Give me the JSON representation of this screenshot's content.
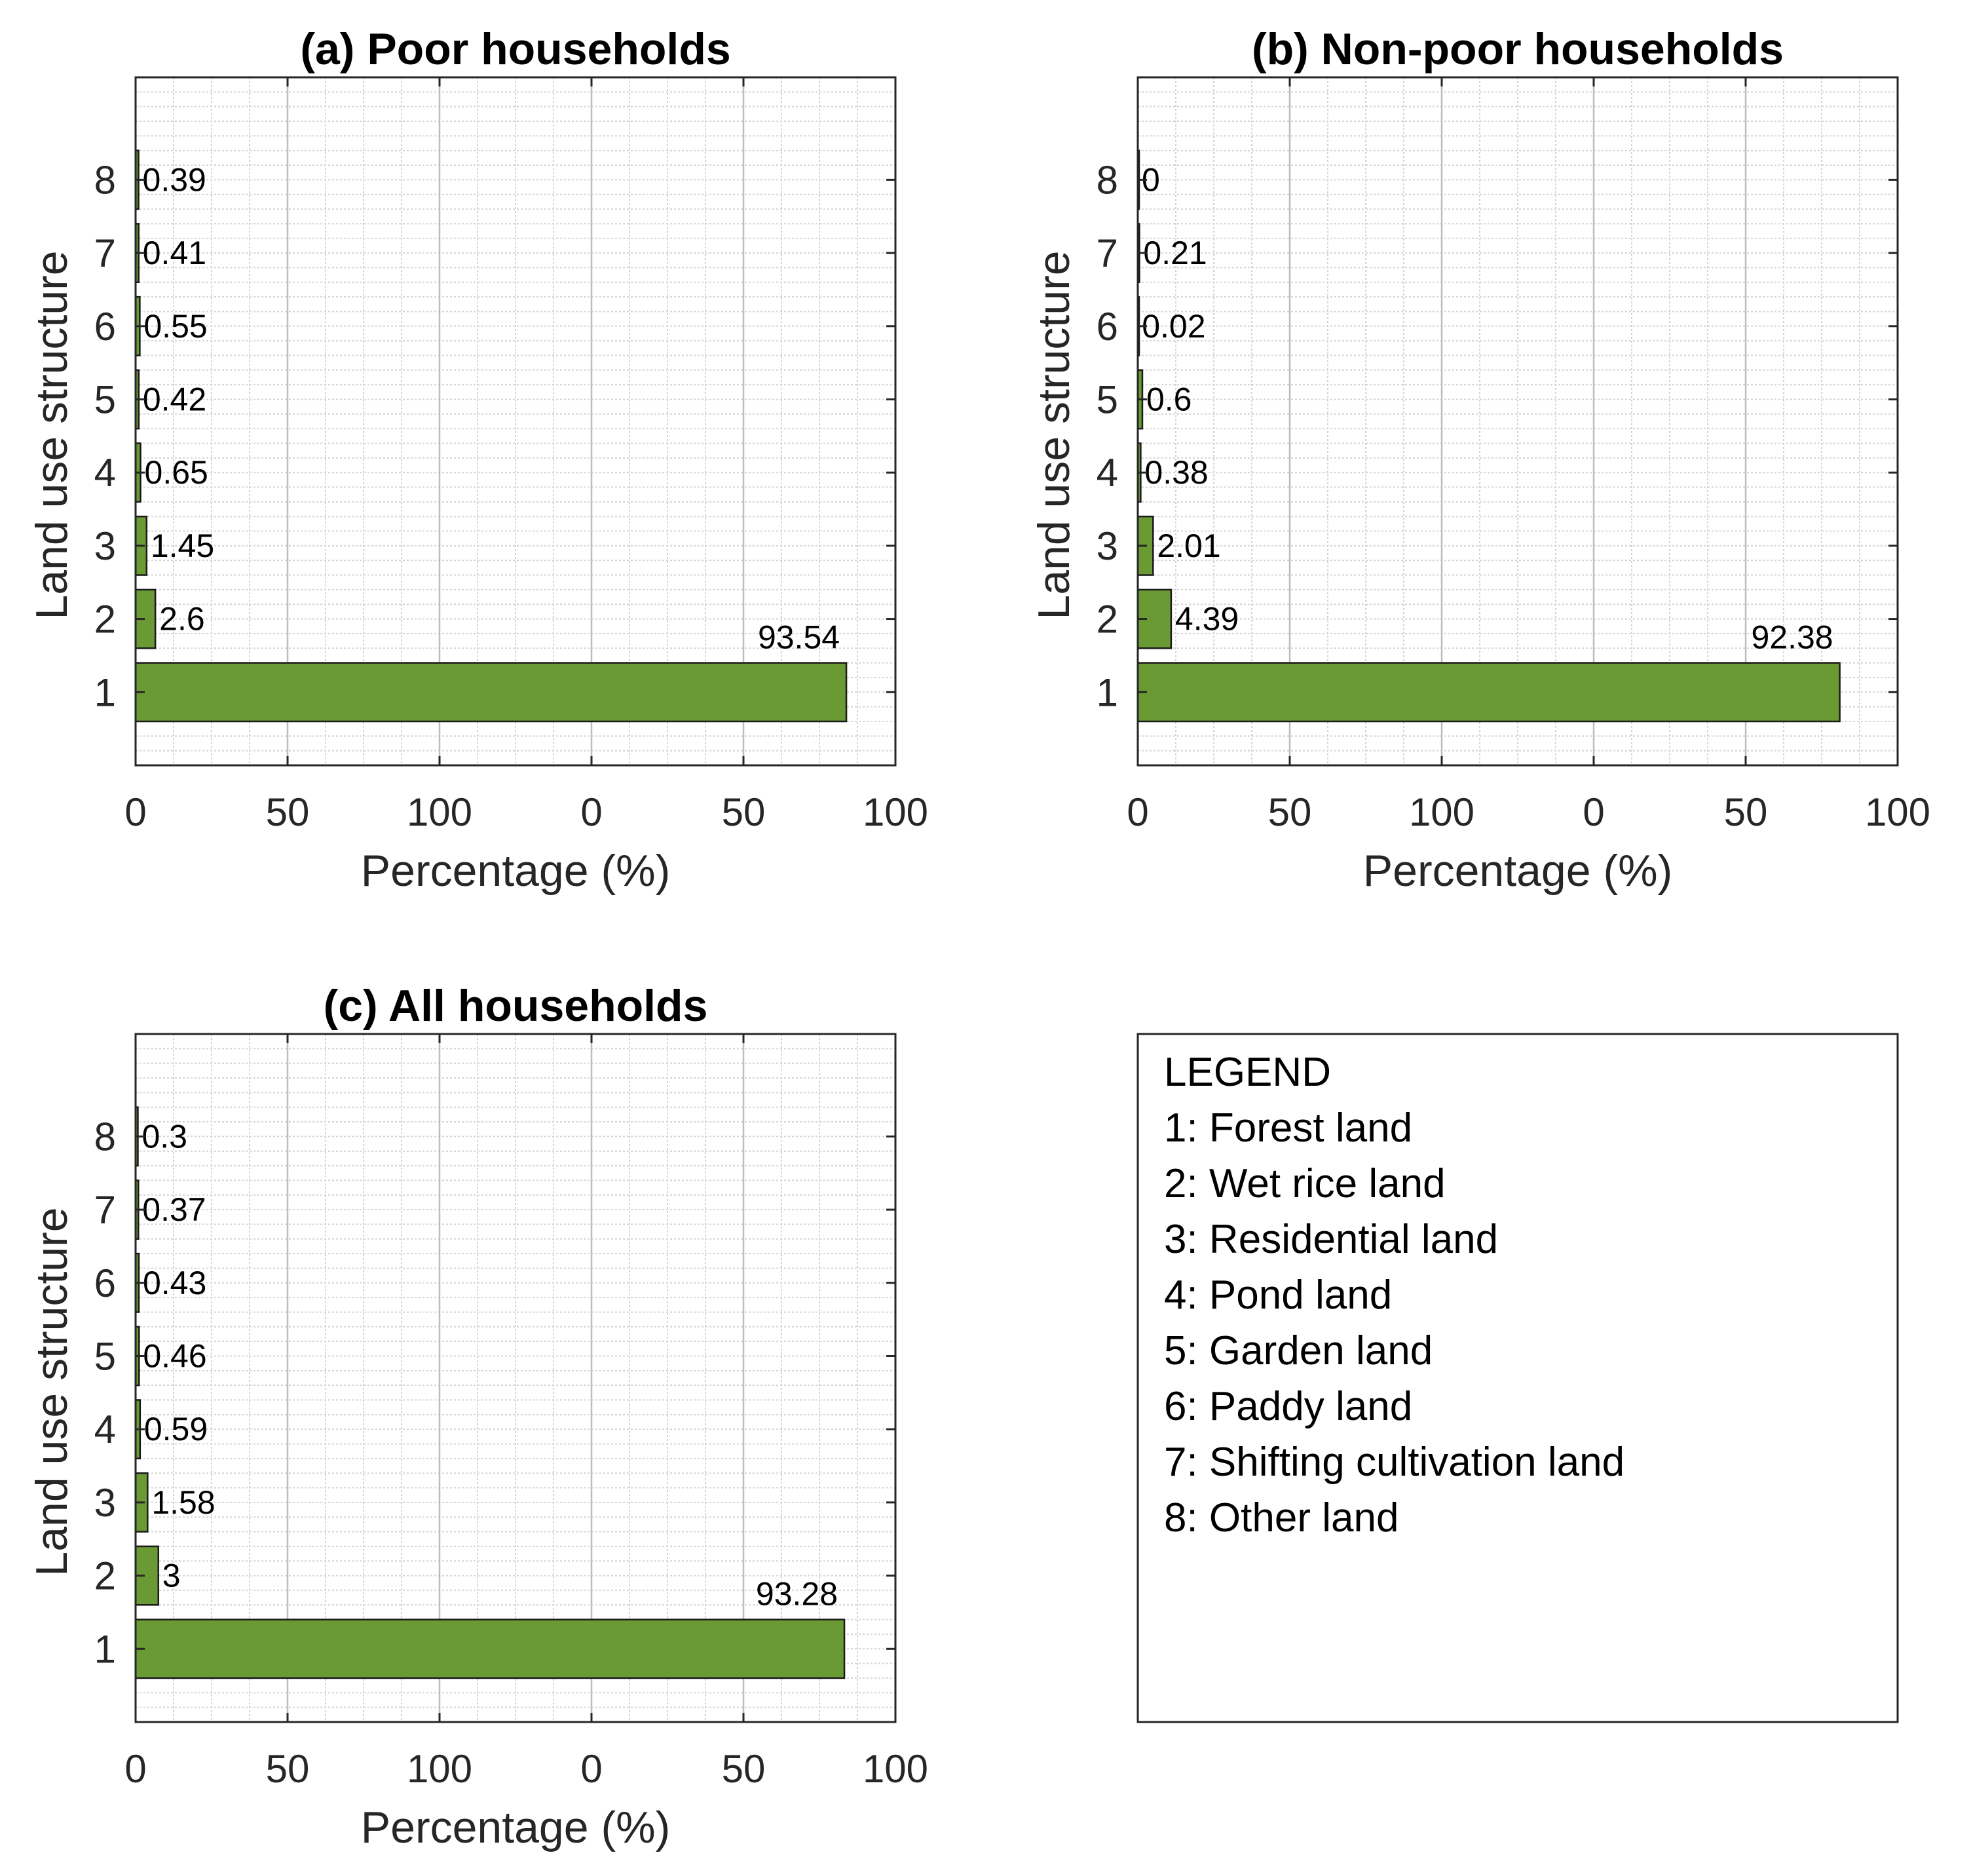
{
  "chart_data": [
    {
      "type": "bar",
      "orientation": "horizontal",
      "title": "(a) Poor households",
      "xlabel": "Percentage (%)",
      "ylabel": "Land use structure",
      "categories": [
        "1",
        "2",
        "3",
        "4",
        "5",
        "6",
        "7",
        "8"
      ],
      "values": [
        93.54,
        2.6,
        1.45,
        0.65,
        0.42,
        0.55,
        0.41,
        0.39
      ],
      "value_labels": [
        "93.54",
        "2.6",
        "1.45",
        "0.65",
        "0.42",
        "0.55",
        "0.41",
        "0.39"
      ],
      "xticks": [
        "0",
        "50",
        "100",
        "0",
        "50",
        "100"
      ],
      "xlim": [
        0,
        100
      ],
      "grid": true,
      "bar_color": "#6a9a34"
    },
    {
      "type": "bar",
      "orientation": "horizontal",
      "title": "(b) Non-poor households",
      "xlabel": "Percentage (%)",
      "ylabel": "Land use structure",
      "categories": [
        "1",
        "2",
        "3",
        "4",
        "5",
        "6",
        "7",
        "8"
      ],
      "values": [
        92.38,
        4.39,
        2.01,
        0.38,
        0.6,
        0.02,
        0.21,
        0
      ],
      "value_labels": [
        "92.38",
        "4.39",
        "2.01",
        "0.38",
        "0.6",
        "0.02",
        "0.21",
        "0"
      ],
      "xticks": [
        "0",
        "50",
        "100",
        "0",
        "50",
        "100"
      ],
      "xlim": [
        0,
        100
      ],
      "grid": true,
      "bar_color": "#6a9a34"
    },
    {
      "type": "bar",
      "orientation": "horizontal",
      "title": "(c) All households",
      "xlabel": "Percentage (%)",
      "ylabel": "Land use structure",
      "categories": [
        "1",
        "2",
        "3",
        "4",
        "5",
        "6",
        "7",
        "8"
      ],
      "values": [
        93.28,
        3,
        1.58,
        0.59,
        0.46,
        0.43,
        0.37,
        0.3
      ],
      "value_labels": [
        "93.28",
        "3",
        "1.58",
        "0.59",
        "0.46",
        "0.43",
        "0.37",
        "0.3"
      ],
      "xticks": [
        "0",
        "50",
        "100",
        "0",
        "50",
        "100"
      ],
      "xlim": [
        0,
        100
      ],
      "grid": true,
      "bar_color": "#6a9a34"
    }
  ],
  "legend": {
    "title": "LEGEND",
    "items": [
      "1: Forest land",
      "2: Wet rice land",
      "3: Residential land",
      "4: Pond land",
      "5: Garden land",
      "6: Paddy land",
      "7: Shifting cultivation land",
      "8: Other land"
    ]
  }
}
